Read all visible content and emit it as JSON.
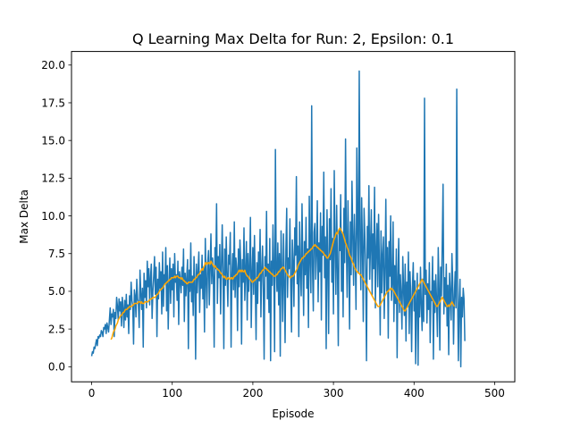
{
  "chart_data": {
    "type": "line",
    "title": "Q Learning Max Delta for Run: 2, Epsilon: 0.1",
    "xlabel": "Episode",
    "ylabel": "Max Delta",
    "xlim": [
      -25,
      525
    ],
    "ylim": [
      -1.0,
      20.9
    ],
    "x_ticks": [
      0,
      100,
      200,
      300,
      400,
      500
    ],
    "y_ticks": [
      0.0,
      2.5,
      5.0,
      7.5,
      10.0,
      12.5,
      15.0,
      17.5,
      20.0
    ],
    "x_tick_labels": [
      "0",
      "100",
      "200",
      "300",
      "400",
      "500"
    ],
    "y_tick_labels": [
      "0.0",
      "2.5",
      "5.0",
      "7.5",
      "10.0",
      "12.5",
      "15.0",
      "17.5",
      "20.0"
    ],
    "grid": false,
    "legend": "none",
    "series": [
      {
        "color": "#1f77b4",
        "x_start": 0,
        "x_step": 1,
        "values": [
          0.7,
          1.0,
          0.9,
          1.3,
          1.2,
          1.5,
          1.8,
          1.4,
          2.0,
          1.9,
          2.1,
          2.0,
          2.4,
          2.3,
          2.0,
          2.6,
          2.5,
          2.8,
          2.2,
          2.9,
          2.6,
          2.3,
          3.1,
          3.9,
          2.8,
          3.5,
          3.3,
          3.8,
          2.0,
          3.6,
          3.2,
          4.6,
          4.0,
          3.1,
          4.5,
          3.7,
          4.3,
          2.7,
          4.6,
          3.9,
          2.6,
          4.4,
          3.1,
          4.8,
          3.3,
          4.1,
          2.2,
          4.7,
          3.8,
          5.6,
          4.4,
          4.0,
          1.5,
          5.1,
          4.7,
          3.3,
          5.8,
          4.5,
          4.2,
          2.6,
          6.4,
          4.9,
          3.8,
          5.2,
          1.3,
          6.2,
          4.6,
          5.7,
          3.9,
          7.0,
          5.3,
          6.5,
          4.1,
          5.9,
          6.8,
          3.2,
          5.0,
          6.0,
          7.3,
          4.8,
          6.6,
          2.0,
          5.8,
          4.5,
          6.9,
          5.2,
          6.3,
          3.5,
          7.6,
          4.0,
          6.1,
          5.5,
          7.9,
          3.7,
          6.7,
          2.5,
          5.4,
          7.2,
          4.2,
          6.5,
          5.1,
          6.8,
          3.3,
          7.5,
          5.6,
          6.1,
          4.4,
          7.0,
          2.8,
          6.3,
          5.8,
          4.9,
          6.6,
          5.4,
          7.8,
          3.0,
          6.2,
          4.7,
          5.9,
          7.1,
          1.2,
          6.4,
          5.0,
          8.2,
          4.3,
          6.0,
          3.4,
          7.3,
          5.7,
          0.5,
          6.8,
          4.9,
          6.3,
          7.6,
          3.6,
          6.1,
          5.2,
          7.4,
          4.5,
          6.6,
          2.3,
          8.5,
          5.8,
          3.9,
          6.9,
          7.7,
          4.1,
          6.4,
          8.8,
          5.5,
          7.2,
          6.0,
          1.3,
          7.9,
          6.5,
          10.8,
          4.2,
          7.3,
          5.9,
          8.1,
          3.5,
          6.7,
          9.4,
          6.2,
          1.2,
          7.8,
          5.4,
          8.6,
          6.1,
          4.0,
          7.4,
          6.8,
          8.9,
          1.3,
          6.0,
          7.5,
          5.1,
          9.6,
          4.6,
          7.2,
          6.5,
          2.4,
          7.8,
          5.3,
          8.4,
          6.9,
          1.5,
          7.1,
          5.6,
          9.2,
          4.4,
          6.3,
          8.3,
          3.1,
          7.5,
          5.0,
          6.7,
          9.9,
          2.6,
          6.1,
          7.9,
          4.8,
          8.7,
          5.5,
          1.8,
          6.9,
          4.2,
          7.6,
          5.7,
          9.1,
          3.3,
          6.4,
          8.0,
          5.2,
          0.5,
          7.3,
          6.0,
          10.3,
          4.5,
          6.8,
          3.6,
          8.5,
          0.4,
          7.0,
          5.4,
          9.4,
          6.3,
          1.0,
          14.4,
          6.6,
          5.0,
          8.2,
          4.1,
          7.5,
          0.7,
          9.0,
          6.2,
          3.0,
          8.8,
          5.7,
          1.6,
          7.7,
          10.5,
          4.6,
          7.2,
          6.5,
          9.8,
          5.3,
          2.3,
          8.4,
          6.9,
          4.0,
          9.2,
          7.4,
          12.6,
          5.5,
          8.0,
          2.0,
          9.6,
          6.4,
          4.7,
          10.8,
          7.0,
          3.4,
          8.3,
          6.1,
          9.9,
          5.2,
          7.8,
          2.6,
          11.3,
          7.2,
          4.9,
          17.3,
          6.7,
          3.7,
          8.9,
          9.5,
          5.8,
          7.6,
          11.0,
          4.3,
          8.2,
          6.3,
          10.2,
          3.1,
          9.3,
          7.4,
          12.9,
          5.9,
          8.6,
          1.2,
          10.4,
          6.8,
          2.2,
          9.8,
          7.1,
          11.8,
          5.6,
          8.5,
          3.5,
          13.0,
          8.0,
          4.8,
          10.7,
          6.5,
          1.4,
          9.1,
          7.7,
          11.4,
          5.0,
          8.8,
          3.3,
          10.5,
          6.9,
          15.1,
          8.3,
          4.6,
          11.0,
          7.3,
          2.5,
          9.6,
          6.1,
          12.3,
          8.7,
          5.4,
          10.1,
          7.5,
          3.8,
          14.5,
          9.2,
          6.2,
          19.6,
          8.4,
          5.1,
          11.2,
          7.9,
          3.0,
          10.5,
          8.6,
          6.4,
          0.4,
          9.3,
          7.2,
          12.0,
          5.8,
          8.1,
          10.4,
          4.7,
          8.8,
          6.5,
          11.9,
          3.9,
          7.7,
          9.5,
          5.3,
          10.1,
          6.8,
          2.1,
          9.0,
          4.9,
          7.4,
          8.6,
          3.2,
          6.3,
          11.1,
          5.0,
          7.9,
          1.9,
          8.3,
          6.0,
          10.0,
          4.4,
          5.5,
          9.6,
          3.0,
          6.7,
          4.2,
          7.8,
          0.6,
          5.9,
          8.5,
          3.6,
          6.1,
          4.8,
          2.5,
          7.3,
          5.2,
          3.4,
          6.8,
          1.7,
          5.6,
          4.0,
          7.6,
          2.2,
          6.3,
          4.6,
          1.0,
          5.3,
          6.9,
          3.7,
          5.7,
          0.2,
          4.5,
          6.2,
          0.1,
          5.1,
          3.3,
          6.6,
          4.1,
          2.4,
          5.8,
          3.0,
          17.8,
          4.8,
          6.4,
          2.9,
          5.5,
          3.8,
          6.9,
          1.6,
          5.0,
          4.4,
          7.3,
          0.5,
          5.7,
          3.6,
          6.1,
          4.3,
          2.0,
          7.9,
          5.2,
          1.1,
          6.6,
          4.7,
          8.2,
          12.1,
          3.5,
          5.9,
          4.0,
          6.8,
          2.7,
          5.4,
          0.8,
          6.2,
          4.9,
          3.1,
          7.5,
          5.6,
          1.5,
          4.6,
          6.3,
          3.9,
          18.4,
          5.0,
          0.4,
          4.2,
          5.8,
          0.0,
          4.6,
          3.3,
          5.2,
          4.5,
          1.7
        ]
      },
      {
        "color": "#ffa500",
        "x_start": 24,
        "x_step": 1,
        "values": [
          1.8,
          1.9,
          2.1,
          2.3,
          2.4,
          2.5,
          2.7,
          2.8,
          2.9,
          3.1,
          3.2,
          3.3,
          3.4,
          3.4,
          3.5,
          3.6,
          3.6,
          3.7,
          3.8,
          3.8,
          3.8,
          3.9,
          3.9,
          4.0,
          4.0,
          4.0,
          4.0,
          4.1,
          4.1,
          4.2,
          4.2,
          4.2,
          4.2,
          4.2,
          4.3,
          4.3,
          4.3,
          4.2,
          4.3,
          4.2,
          4.2,
          4.2,
          4.3,
          4.3,
          4.3,
          4.3,
          4.3,
          4.4,
          4.4,
          4.5,
          4.5,
          4.5,
          4.6,
          4.6,
          4.6,
          4.6,
          4.7,
          4.8,
          4.8,
          4.9,
          5.0,
          5.1,
          5.1,
          5.2,
          5.2,
          5.3,
          5.4,
          5.5,
          5.5,
          5.6,
          5.6,
          5.7,
          5.7,
          5.8,
          5.8,
          5.9,
          5.9,
          5.9,
          5.9,
          6.0,
          5.9,
          6.0,
          6.0,
          6.0,
          5.9,
          5.9,
          5.9,
          5.8,
          5.9,
          5.8,
          5.7,
          5.7,
          5.6,
          5.6,
          5.5,
          5.5,
          5.6,
          5.6,
          5.6,
          5.6,
          5.6,
          5.6,
          5.7,
          5.8,
          5.8,
          5.9,
          5.9,
          6.0,
          6.1,
          6.1,
          6.2,
          6.3,
          6.4,
          6.5,
          6.4,
          6.6,
          6.7,
          6.9,
          6.8,
          6.9,
          6.8,
          6.9,
          6.9,
          6.8,
          7.0,
          6.9,
          6.8,
          6.7,
          6.6,
          6.7,
          6.6,
          6.5,
          6.5,
          6.4,
          6.4,
          6.3,
          6.2,
          6.2,
          6.1,
          6.0,
          5.9,
          6.0,
          5.9,
          5.8,
          5.8,
          5.9,
          5.9,
          5.8,
          5.8,
          5.9,
          5.9,
          5.8,
          5.9,
          6.0,
          6.0,
          6.1,
          6.1,
          6.2,
          6.3,
          6.4,
          6.3,
          6.4,
          6.3,
          6.4,
          6.3,
          6.3,
          6.4,
          6.2,
          6.1,
          6.0,
          6.0,
          5.9,
          5.8,
          5.8,
          5.7,
          5.6,
          5.6,
          5.7,
          5.7,
          5.8,
          5.8,
          5.9,
          5.9,
          6.0,
          6.1,
          6.2,
          6.2,
          6.3,
          6.4,
          6.4,
          6.5,
          6.6,
          6.5,
          6.5,
          6.4,
          6.4,
          6.3,
          6.3,
          6.2,
          6.2,
          6.1,
          6.1,
          6.0,
          6.0,
          6.0,
          6.1,
          6.1,
          6.2,
          6.3,
          6.3,
          6.4,
          6.5,
          6.5,
          6.6,
          6.6,
          6.5,
          6.4,
          6.3,
          6.2,
          6.1,
          6.0,
          6.0,
          5.9,
          5.9,
          6.0,
          6.0,
          6.0,
          6.1,
          6.2,
          6.3,
          6.4,
          6.5,
          6.7,
          6.8,
          6.9,
          7.0,
          7.1,
          7.2,
          7.2,
          7.3,
          7.3,
          7.4,
          7.5,
          7.5,
          7.6,
          7.6,
          7.7,
          7.7,
          7.8,
          7.8,
          7.9,
          8.0,
          8.0,
          8.1,
          8.0,
          8.0,
          7.9,
          7.9,
          7.8,
          7.8,
          7.7,
          7.7,
          7.6,
          7.6,
          7.5,
          7.4,
          7.4,
          7.3,
          7.2,
          7.2,
          7.3,
          7.4,
          7.5,
          7.7,
          7.9,
          8.1,
          8.3,
          8.5,
          8.6,
          8.8,
          8.9,
          8.8,
          9.0,
          9.1,
          9.2,
          9.1,
          9.0,
          8.9,
          8.8,
          8.6,
          8.4,
          8.2,
          8.1,
          7.9,
          7.8,
          7.6,
          7.4,
          7.3,
          7.2,
          7.0,
          6.9,
          6.8,
          6.6,
          6.5,
          6.4,
          6.3,
          6.3,
          6.2,
          6.2,
          6.1,
          6.1,
          6.0,
          5.9,
          5.8,
          5.7,
          5.6,
          5.5,
          5.4,
          5.3,
          5.2,
          5.1,
          5.0,
          4.9,
          4.8,
          4.7,
          4.6,
          4.5,
          4.4,
          4.3,
          4.2,
          4.1,
          4.0,
          4.0,
          4.0,
          4.1,
          4.2,
          4.3,
          4.4,
          4.5,
          4.6,
          4.7,
          4.8,
          4.9,
          5.0,
          5.0,
          5.1,
          5.1,
          5.2,
          5.2,
          5.1,
          5.1,
          5.0,
          4.9,
          4.8,
          4.7,
          4.6,
          4.5,
          4.4,
          4.3,
          4.2,
          4.1,
          4.0,
          3.9,
          3.8,
          3.7,
          3.7,
          3.8,
          3.9,
          4.0,
          4.1,
          4.2,
          4.3,
          4.4,
          4.5,
          4.6,
          4.7,
          4.8,
          4.9,
          5.0,
          5.1,
          5.2,
          5.3,
          5.4,
          5.5,
          5.6,
          5.7,
          5.8,
          5.7,
          5.6,
          5.5,
          5.4,
          5.3,
          5.2,
          5.1,
          5.0,
          4.9,
          4.8,
          4.7,
          4.6,
          4.5,
          4.4,
          4.3,
          4.2,
          4.1,
          4.0,
          4.0,
          4.1,
          4.2,
          4.3,
          4.4,
          4.5,
          4.6,
          4.5,
          4.4,
          4.3,
          4.2,
          4.1,
          4.0,
          4.0,
          4.1,
          4.0,
          4.1,
          4.2,
          4.3,
          4.2,
          4.1,
          4.0
        ]
      }
    ]
  }
}
